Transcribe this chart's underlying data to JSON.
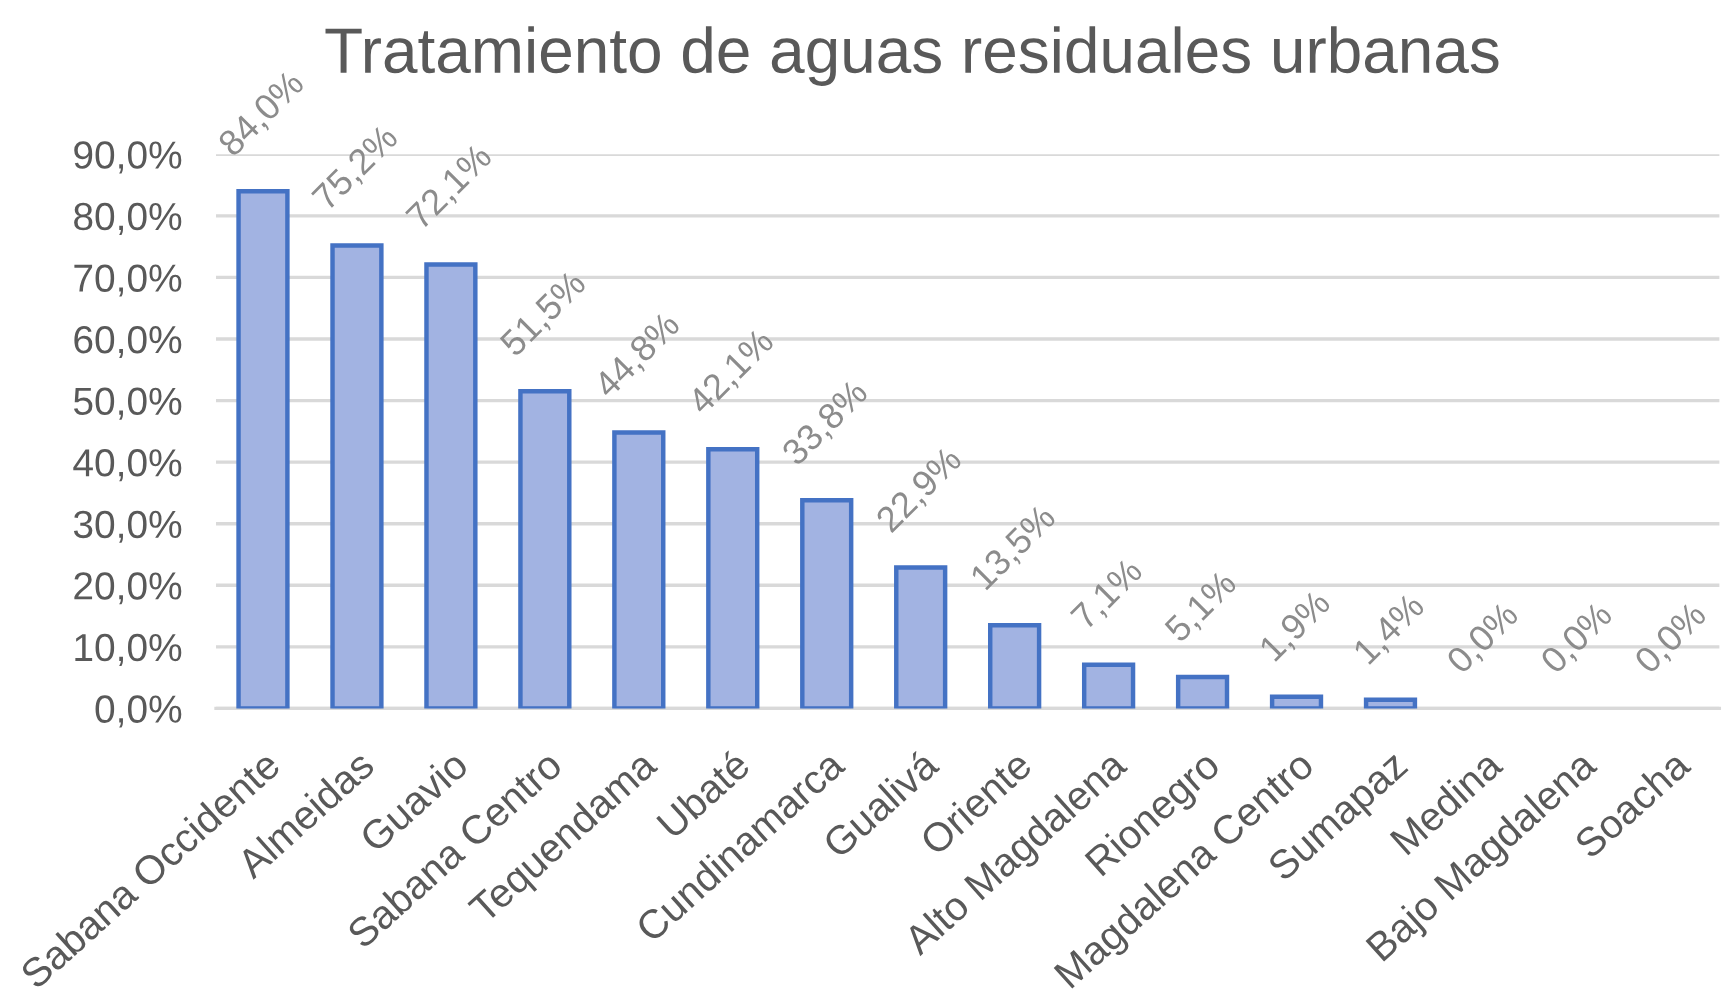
{
  "chart_data": {
    "type": "bar",
    "title": "Tratamiento de aguas residuales urbanas",
    "categories": [
      "Sabana Occidente",
      "Almeidas",
      "Guavio",
      "Sabana Centro",
      "Tequendama",
      "Ubaté",
      "Cundinamarca",
      "Gualivá",
      "Oriente",
      "Alto Magdalena",
      "Rionegro",
      "Magdalena Centro",
      "Sumapaz",
      "Medina",
      "Bajo Magdalena",
      "Soacha"
    ],
    "values": [
      84.0,
      75.2,
      72.1,
      51.5,
      44.8,
      42.1,
      33.8,
      22.9,
      13.5,
      7.1,
      5.1,
      1.9,
      1.4,
      0.0,
      0.0,
      0.0
    ],
    "value_labels": [
      "84,0%",
      "75,2%",
      "72,1%",
      "51,5%",
      "44,8%",
      "42,1%",
      "33,8%",
      "22,9%",
      "13,5%",
      "7,1%",
      "5,1%",
      "1,9%",
      "1,4%",
      "0,0%",
      "0,0%",
      "0,0%"
    ],
    "color": "#a2b3e2",
    "ylim": [
      0,
      90
    ],
    "yticks": [
      {
        "value": 0,
        "label": "0,0%"
      },
      {
        "value": 10,
        "label": "10,0%"
      },
      {
        "value": 20,
        "label": "20,0%"
      },
      {
        "value": 30,
        "label": "30,0%"
      },
      {
        "value": 40,
        "label": "40,0%"
      },
      {
        "value": 50,
        "label": "50,0%"
      },
      {
        "value": 60,
        "label": "60,0%"
      },
      {
        "value": 70,
        "label": "70,0%"
      },
      {
        "value": 80,
        "label": "80,0%"
      },
      {
        "value": 90,
        "label": "90,0%"
      }
    ],
    "grid": "y"
  }
}
